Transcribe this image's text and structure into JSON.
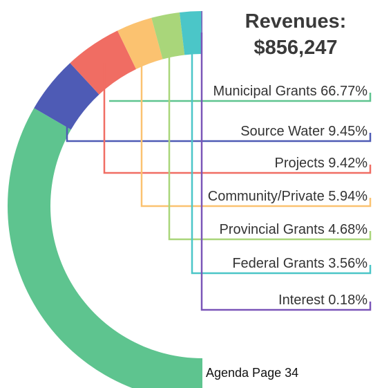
{
  "header": {
    "title_line1": "Revenues:",
    "title_line2": "$856,247"
  },
  "footer": {
    "page_label": "Agenda Page 34"
  },
  "chart_data": {
    "type": "pie",
    "title": "Revenues: $856,247",
    "total": 856247,
    "unit": "%",
    "slices": [
      {
        "label": "Municipal Grants 66.77%",
        "name": "Municipal Grants",
        "value": 66.77,
        "color": "#5ec48f"
      },
      {
        "label": "Source Water 9.45%",
        "name": "Source Water",
        "value": 9.45,
        "color": "#4e5bb5"
      },
      {
        "label": "Projects 9.42%",
        "name": "Projects",
        "value": 9.42,
        "color": "#f06d63"
      },
      {
        "label": "Community/Private 5.94%",
        "name": "Community/Private",
        "value": 5.94,
        "color": "#fbc270"
      },
      {
        "label": "Provincial Grants 4.68%",
        "name": "Provincial Grants",
        "value": 4.68,
        "color": "#a9d67a"
      },
      {
        "label": "Federal Grants 3.56%",
        "name": "Federal Grants",
        "value": 3.56,
        "color": "#4bc6c8"
      },
      {
        "label": "Interest 0.18%",
        "name": "Interest",
        "value": 0.18,
        "color": "#7a55b8"
      }
    ]
  }
}
